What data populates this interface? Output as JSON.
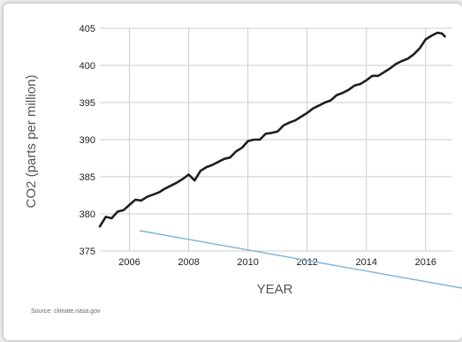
{
  "source_note": "Source: climate.nasa.gov",
  "colors": {
    "series": "#1f1f1f",
    "grid": "#cccccc",
    "overlay_line": "#7fb3d9",
    "page_bg": "#eeeeee",
    "card_bg": "#ffffff"
  },
  "chart_data": {
    "type": "line",
    "title": "",
    "xlabel": "YEAR",
    "ylabel": "CO2 (parts per million)",
    "xlim": [
      2005,
      2016.9
    ],
    "ylim": [
      375,
      405
    ],
    "x_ticks": [
      2006,
      2008,
      2010,
      2012,
      2014,
      2016
    ],
    "y_ticks": [
      375,
      380,
      385,
      390,
      395,
      400,
      405
    ],
    "grid": true,
    "series": [
      {
        "x": [
          2005.0,
          2005.2,
          2005.4,
          2005.6,
          2005.8,
          2006.0,
          2006.2,
          2006.4,
          2006.6,
          2006.8,
          2007.0,
          2007.2,
          2007.4,
          2007.6,
          2007.8,
          2008.0,
          2008.2,
          2008.4,
          2008.6,
          2008.8,
          2009.0,
          2009.2,
          2009.4,
          2009.6,
          2009.8,
          2010.0,
          2010.2,
          2010.4,
          2010.6,
          2010.8,
          2011.0,
          2011.2,
          2011.4,
          2011.6,
          2011.8,
          2012.0,
          2012.2,
          2012.4,
          2012.6,
          2012.8,
          2013.0,
          2013.2,
          2013.4,
          2013.6,
          2013.8,
          2014.0,
          2014.2,
          2014.4,
          2014.6,
          2014.8,
          2015.0,
          2015.2,
          2015.4,
          2015.6,
          2015.8,
          2016.0,
          2016.2,
          2016.4,
          2016.55,
          2016.65
        ],
        "values": [
          378.3,
          379.6,
          379.4,
          380.3,
          380.5,
          381.2,
          381.9,
          381.8,
          382.3,
          382.6,
          382.9,
          383.4,
          383.8,
          384.2,
          384.7,
          385.3,
          384.5,
          385.8,
          386.3,
          386.6,
          387.0,
          387.4,
          387.6,
          388.4,
          388.9,
          389.8,
          390.0,
          390.0,
          390.8,
          390.9,
          391.1,
          391.9,
          392.3,
          392.6,
          393.1,
          393.6,
          394.2,
          394.6,
          395.0,
          395.3,
          396.0,
          396.3,
          396.7,
          397.3,
          397.5,
          398.0,
          398.6,
          398.6,
          399.1,
          399.6,
          400.2,
          400.6,
          400.9,
          401.5,
          402.3,
          403.5,
          404.0,
          404.4,
          404.3,
          403.9
        ]
      }
    ]
  }
}
